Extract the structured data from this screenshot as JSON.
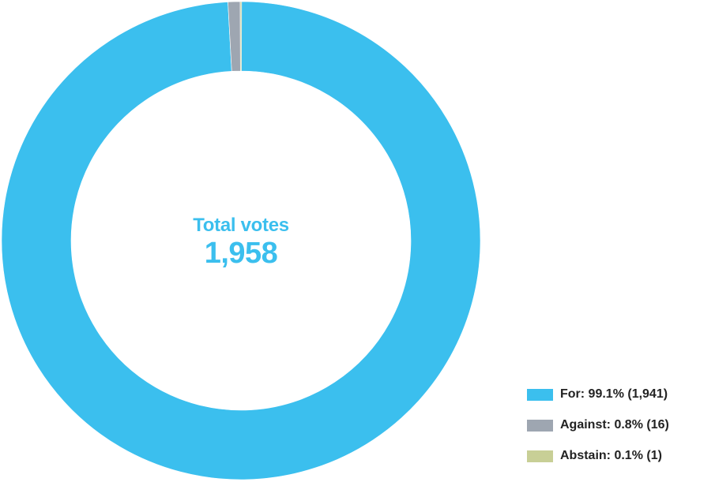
{
  "chart_data": {
    "type": "pie",
    "style": "donut",
    "center": {
      "title": "Total votes",
      "value": "1,958"
    },
    "series": [
      {
        "name": "For",
        "value": 1941,
        "percent": 99.1,
        "color": "#3bbfee",
        "legend": "For: 99.1% (1,941)"
      },
      {
        "name": "Against",
        "value": 16,
        "percent": 0.8,
        "color": "#9ea6b1",
        "legend": "Against: 0.8% (16)"
      },
      {
        "name": "Abstain",
        "value": 1,
        "percent": 0.1,
        "color": "#c8cf96",
        "legend": "Abstain: 0.1% (1)"
      }
    ],
    "legend_position": "bottom-right"
  }
}
